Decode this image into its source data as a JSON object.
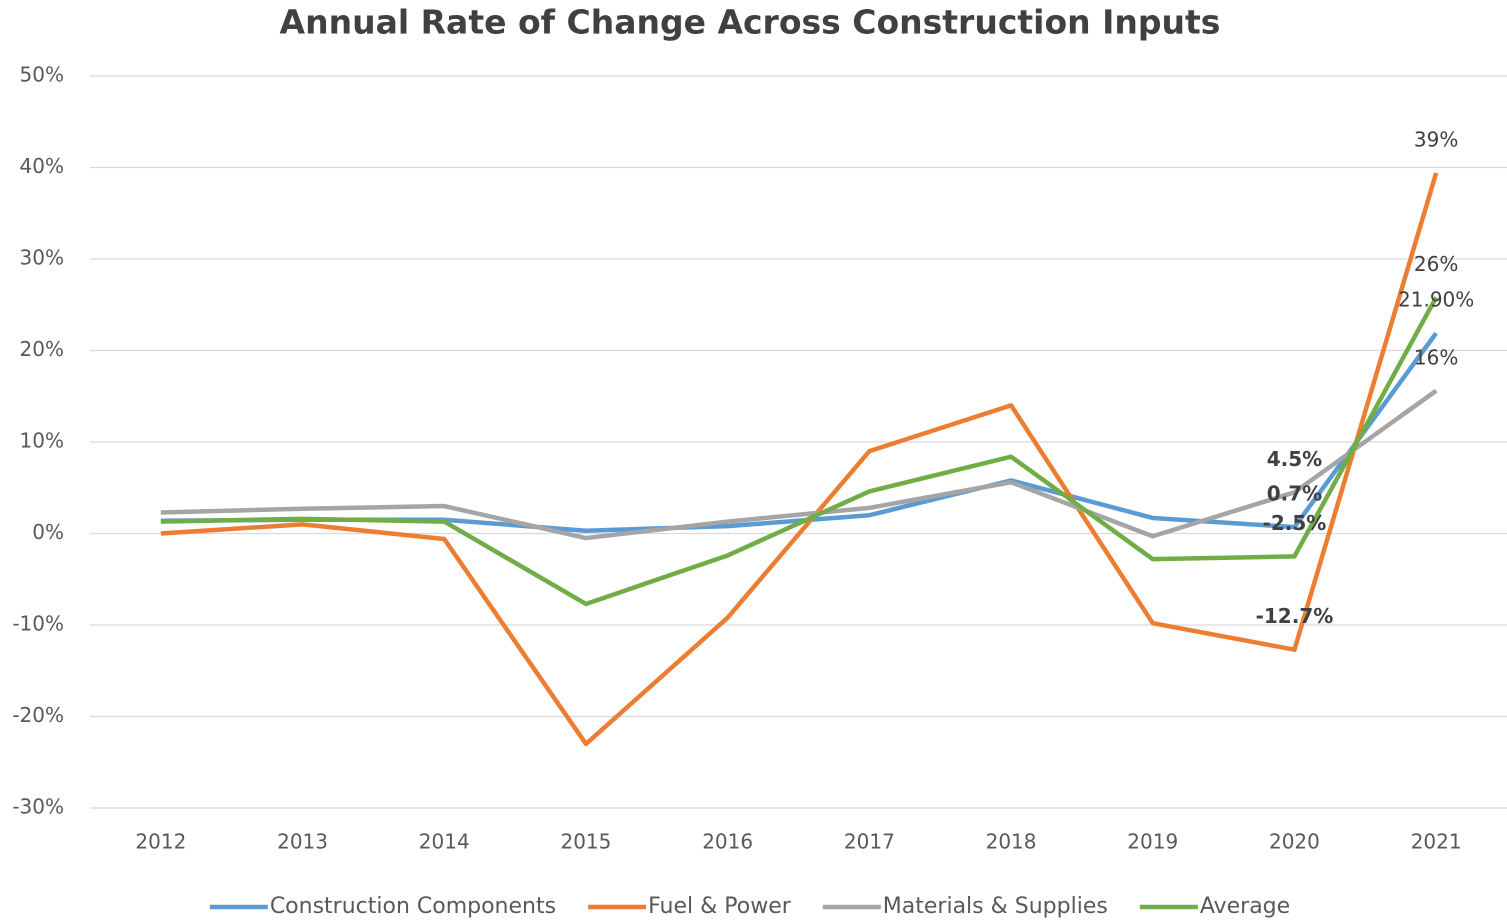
{
  "chart_data": {
    "type": "line",
    "title": "Annual Rate of Change Across Construction Inputs",
    "categories": [
      "2012",
      "2013",
      "2014",
      "2015",
      "2016",
      "2017",
      "2018",
      "2019",
      "2020",
      "2021"
    ],
    "ylim": [
      -30,
      50
    ],
    "yticks": [
      {
        "value": -30,
        "label": "-30%"
      },
      {
        "value": -20,
        "label": "-20%"
      },
      {
        "value": -10,
        "label": "-10%"
      },
      {
        "value": 0,
        "label": "0%"
      },
      {
        "value": 10,
        "label": "10%"
      },
      {
        "value": 20,
        "label": "20%"
      },
      {
        "value": 30,
        "label": "30%"
      },
      {
        "value": 40,
        "label": "40%"
      },
      {
        "value": 50,
        "label": "50%"
      }
    ],
    "grid": true,
    "legend": "bottom",
    "series": [
      {
        "name": "Construction Components",
        "color": "#5b9bd5",
        "values": [
          1.4,
          1.5,
          1.5,
          0.3,
          0.8,
          2.0,
          5.8,
          1.7,
          0.7,
          21.9
        ],
        "value_labels": [
          null,
          null,
          null,
          null,
          null,
          null,
          null,
          null,
          "0.7%",
          "21.90%"
        ]
      },
      {
        "name": "Fuel & Power",
        "color": "#ed7d31",
        "values": [
          0,
          1.0,
          -0.6,
          -23,
          -9.2,
          9.0,
          14.0,
          -9.8,
          -12.7,
          39.4
        ],
        "value_labels": [
          null,
          null,
          null,
          null,
          null,
          null,
          null,
          null,
          "-12.7%",
          "39%"
        ]
      },
      {
        "name": "Materials & Supplies",
        "color": "#a5a5a5",
        "values": [
          2.3,
          2.7,
          3.0,
          -0.5,
          1.3,
          2.8,
          5.6,
          -0.3,
          4.5,
          15.6
        ],
        "value_labels": [
          null,
          null,
          null,
          null,
          null,
          null,
          null,
          null,
          "4.5%",
          "16%"
        ]
      },
      {
        "name": "Average",
        "color": "#70ad47",
        "values": [
          1.3,
          1.6,
          1.3,
          -7.7,
          -2.4,
          4.6,
          8.4,
          -2.8,
          -2.5,
          25.8
        ],
        "value_labels": [
          null,
          null,
          null,
          null,
          null,
          null,
          null,
          null,
          "-2.5%",
          "26%"
        ]
      }
    ]
  }
}
